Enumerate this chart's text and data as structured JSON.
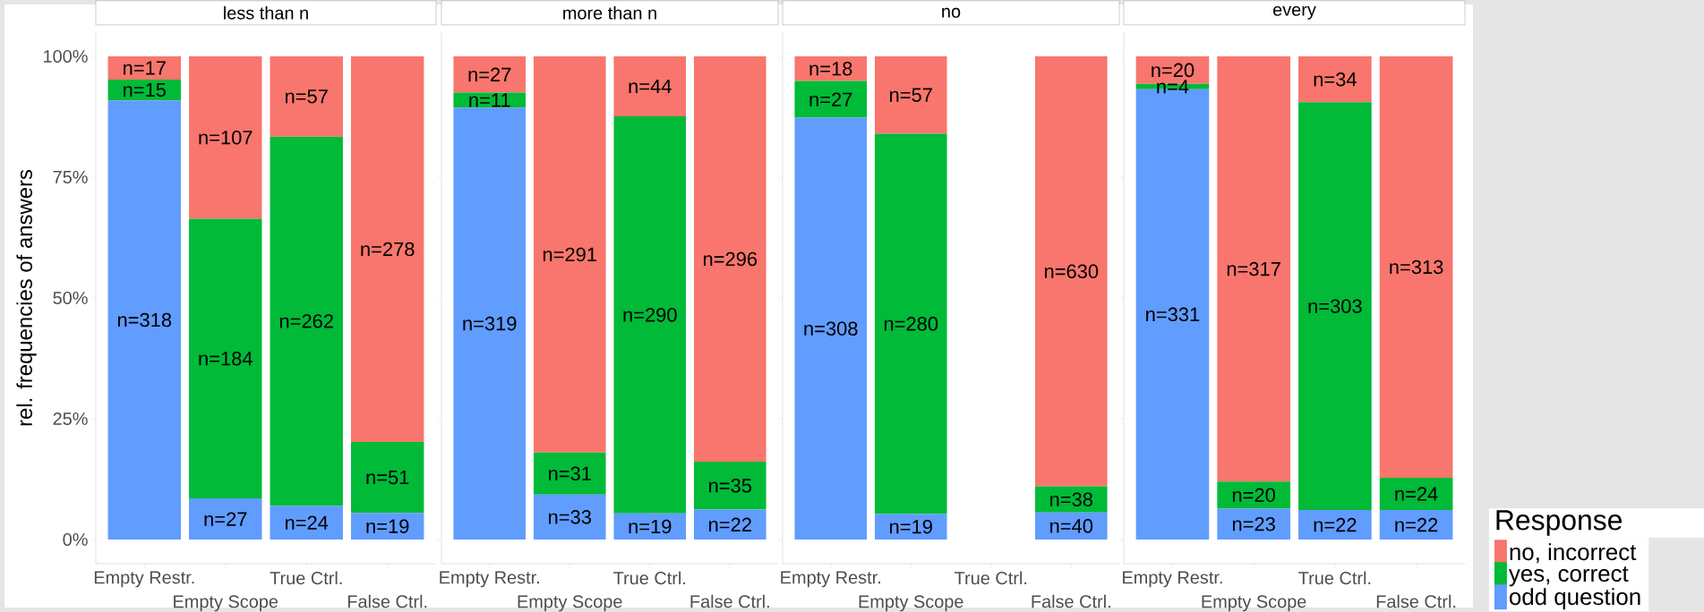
{
  "chart_data": [
    {
      "type": "bar",
      "stacked": true,
      "title": "less than n",
      "ylabel": "rel. frequencies of answers",
      "categories": [
        "Empty Restr.",
        "Empty Scope",
        "True Ctrl.",
        "False Ctrl."
      ],
      "ylim": [
        -5,
        105
      ],
      "yticks": [
        {
          "value": 0,
          "label": "0%"
        },
        {
          "value": 25,
          "label": "25%"
        },
        {
          "value": 50,
          "label": "50%"
        },
        {
          "value": 75,
          "label": "75%"
        },
        {
          "value": 100,
          "label": "100%"
        }
      ],
      "series": [
        {
          "color": "#619cff",
          "values": [
            90.9,
            8.5,
            7.0,
            5.5
          ]
        },
        {
          "color": "#00ba38",
          "values": [
            4.3,
            57.9,
            76.4,
            14.7
          ]
        },
        {
          "color": "#f8766d",
          "values": [
            4.8,
            33.6,
            16.6,
            79.8
          ]
        }
      ],
      "annotations": [
        "n=318",
        "n=15",
        "n=17",
        "n=27",
        "n=184",
        "n=107",
        "n=24",
        "n=262",
        "n=57",
        "n=19",
        "n=51",
        "n=278"
      ]
    },
    {
      "type": "bar",
      "stacked": true,
      "title": "more than n",
      "tick_labels": "x",
      "categories": [
        "Empty Restr.",
        "Empty Scope",
        "True Ctrl.",
        "False Ctrl."
      ],
      "ylim": [
        -5,
        105
      ],
      "yticks": [
        {
          "value": 0,
          "label": null
        },
        {
          "value": 25,
          "label": null
        },
        {
          "value": 50,
          "label": null
        },
        {
          "value": 75,
          "label": null
        },
        {
          "value": 100,
          "label": null
        }
      ],
      "series": [
        {
          "color": "#619cff",
          "values": [
            89.4,
            9.3,
            5.4,
            6.2
          ]
        },
        {
          "color": "#00ba38",
          "values": [
            3.1,
            8.7,
            82.2,
            9.9
          ]
        },
        {
          "color": "#f8766d",
          "values": [
            7.5,
            82.0,
            12.4,
            83.9
          ]
        }
      ],
      "annotations": [
        "n=319",
        "n=11",
        "n=27",
        "n=33",
        "n=31",
        "n=291",
        "n=19",
        "n=290",
        "n=44",
        "n=22",
        "n=35",
        "n=296"
      ]
    },
    {
      "type": "bar",
      "stacked": true,
      "title": "no",
      "tick_labels": "x",
      "categories": [
        "Empty Restr.",
        "Empty Scope",
        "True Ctrl.",
        "False Ctrl."
      ],
      "ylim": [
        -5,
        105
      ],
      "yticks": [
        {
          "value": 0,
          "label": null
        },
        {
          "value": 25,
          "label": null
        },
        {
          "value": 50,
          "label": null
        },
        {
          "value": 75,
          "label": null
        },
        {
          "value": 100,
          "label": null
        }
      ],
      "series": [
        {
          "color": "#619cff",
          "values": [
            87.3,
            5.3,
            null,
            5.6
          ]
        },
        {
          "color": "#00ba38",
          "values": [
            7.6,
            78.7,
            null,
            5.4
          ]
        },
        {
          "color": "#f8766d",
          "values": [
            5.1,
            16.0,
            null,
            89.0
          ]
        }
      ],
      "annotations": [
        "n=308",
        "n=27",
        "n=18",
        "n=19",
        "n=280",
        "n=57",
        "n=40",
        "n=38",
        "n=630"
      ]
    },
    {
      "type": "bar",
      "stacked": true,
      "title": "every",
      "tick_labels": "x",
      "legend": "bottom right",
      "legend_title": "Response",
      "categories": [
        "Empty Restr.",
        "Empty Scope",
        "True Ctrl.",
        "False Ctrl."
      ],
      "ylim": [
        -5,
        105
      ],
      "yticks": [
        {
          "value": 0,
          "label": null
        },
        {
          "value": 25,
          "label": null
        },
        {
          "value": 50,
          "label": null
        },
        {
          "value": 75,
          "label": null
        },
        {
          "value": 100,
          "label": null
        }
      ],
      "series": [
        {
          "name": "odd question",
          "color": "#619cff",
          "values": [
            93.2,
            6.4,
            6.1,
            6.1
          ]
        },
        {
          "name": "yes, correct",
          "color": "#00ba38",
          "values": [
            1.1,
            5.6,
            84.4,
            6.7
          ]
        },
        {
          "name": "no, incorrect",
          "color": "#f8766d",
          "values": [
            5.7,
            88.0,
            9.5,
            87.2
          ]
        }
      ],
      "annotations": [
        "n=331",
        "n=4",
        "n=20",
        "n=23",
        "n=20",
        "n=317",
        "n=22",
        "n=303",
        "n=34",
        "n=22",
        "n=24",
        "n=313"
      ]
    }
  ]
}
